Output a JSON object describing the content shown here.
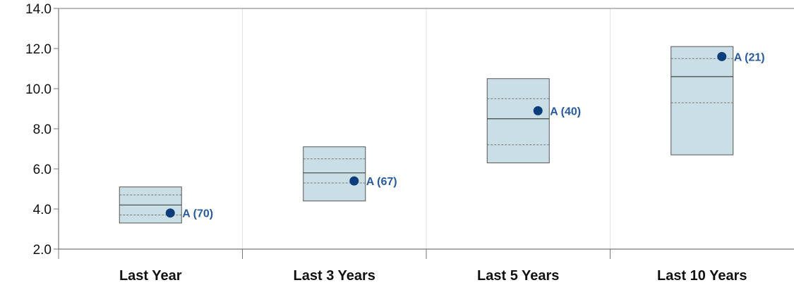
{
  "chart_data": {
    "type": "box",
    "title": "",
    "xlabel": "",
    "ylabel": "",
    "ylim": [
      2.0,
      14.0
    ],
    "yticks": [
      "2.0",
      "4.0",
      "6.0",
      "8.0",
      "10.0",
      "12.0",
      "14.0"
    ],
    "grid": false,
    "categories": [
      "Last Year",
      "Last 3 Years",
      "Last 5 Years",
      "Last 10 Years"
    ],
    "boxes": [
      {
        "category": "Last Year",
        "low": 3.3,
        "q1": 3.7,
        "median": 4.2,
        "q3": 4.7,
        "high": 5.1
      },
      {
        "category": "Last 3 Years",
        "low": 4.4,
        "q1": 5.3,
        "median": 5.8,
        "q3": 6.5,
        "high": 7.1
      },
      {
        "category": "Last 5 Years",
        "low": 6.3,
        "q1": 7.2,
        "median": 8.5,
        "q3": 9.5,
        "high": 10.5
      },
      {
        "category": "Last 10 Years",
        "low": 6.7,
        "q1": 9.3,
        "median": 10.6,
        "q3": 11.5,
        "high": 12.1
      }
    ],
    "points": [
      {
        "category": "Last Year",
        "value": 3.8,
        "label": "A (70)"
      },
      {
        "category": "Last 3 Years",
        "value": 5.4,
        "label": "A (67)"
      },
      {
        "category": "Last 5 Years",
        "value": 8.9,
        "label": "A (40)"
      },
      {
        "category": "Last 10 Years",
        "value": 11.6,
        "label": "A (21)"
      }
    ],
    "colors": {
      "box_fill": "#c9dfe5",
      "box_stroke": "#555555",
      "point": "#0b3d7a",
      "point_label": "#2a5a9a",
      "axis": "#777777",
      "divider": "#e4e4e4"
    }
  }
}
